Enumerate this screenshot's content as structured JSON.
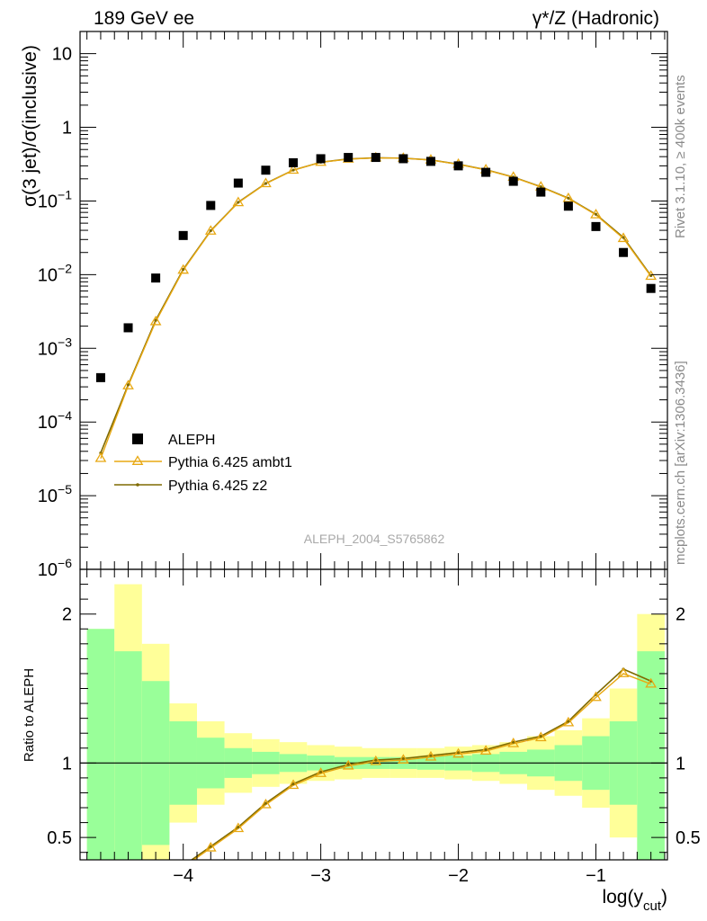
{
  "header": {
    "left": "189 GeV ee",
    "right": "γ*/Z (Hadronic)"
  },
  "side_text": {
    "rivet": "Rivet 3.1.10, ≥ 400k events",
    "mcplots": "mcplots.cern.ch [arXiv:1306.3436]"
  },
  "watermark": "ALEPH_2004_S5765862",
  "colors": {
    "aleph": "#000000",
    "ambt1": "#e8a812",
    "z2": "#7f6a00",
    "band_inner": "#99ff99",
    "band_outer": "#ffff99"
  },
  "chart_data": [
    {
      "type": "scatter",
      "panel": "main",
      "ylabel": "σ(3 jet)/σ(inclusive)",
      "yscale": "log",
      "ylim": [
        1e-06,
        20
      ],
      "xlim": [
        -4.75,
        -0.48
      ],
      "y_ticks": [
        {
          "v": 10,
          "label": "10"
        },
        {
          "v": 1,
          "label": "1"
        },
        {
          "v": 0.1,
          "label": "10",
          "exp": "−1"
        },
        {
          "v": 0.01,
          "label": "10",
          "exp": "−2"
        },
        {
          "v": 0.001,
          "label": "10",
          "exp": "−3"
        },
        {
          "v": 0.0001,
          "label": "10",
          "exp": "−4"
        },
        {
          "v": 1e-05,
          "label": "10",
          "exp": "−5"
        },
        {
          "v": 1e-06,
          "label": "10",
          "exp": "−6"
        }
      ],
      "legend_position": "bottom-left",
      "series": [
        {
          "name": "ALEPH",
          "style": "square",
          "x": [
            -4.6,
            -4.4,
            -4.2,
            -4.0,
            -3.8,
            -3.6,
            -3.4,
            -3.2,
            -3.0,
            -2.8,
            -2.6,
            -2.4,
            -2.2,
            -2.0,
            -1.8,
            -1.6,
            -1.4,
            -1.2,
            -1.0,
            -0.8,
            -0.6
          ],
          "y": [
            0.0004,
            0.0019,
            0.009,
            0.034,
            0.087,
            0.175,
            0.262,
            0.33,
            0.375,
            0.39,
            0.39,
            0.375,
            0.345,
            0.3,
            0.245,
            0.185,
            0.132,
            0.085,
            0.045,
            0.02,
            0.0065
          ]
        },
        {
          "name": "Pythia 6.425 ambt1",
          "style": "triangle",
          "x": [
            -4.6,
            -4.4,
            -4.2,
            -4.0,
            -3.8,
            -3.6,
            -3.4,
            -3.2,
            -3.0,
            -2.8,
            -2.6,
            -2.4,
            -2.2,
            -2.0,
            -1.8,
            -1.6,
            -1.4,
            -1.2,
            -1.0,
            -0.8,
            -0.6
          ],
          "y": [
            3.2e-05,
            0.00031,
            0.0023,
            0.0115,
            0.039,
            0.095,
            0.172,
            0.262,
            0.335,
            0.37,
            0.385,
            0.38,
            0.36,
            0.315,
            0.265,
            0.21,
            0.155,
            0.108,
            0.065,
            0.031,
            0.0095
          ]
        },
        {
          "name": "Pythia 6.425 z2",
          "style": "line",
          "x": [
            -4.6,
            -4.4,
            -4.2,
            -4.0,
            -3.8,
            -3.6,
            -3.4,
            -3.2,
            -3.0,
            -2.8,
            -2.6,
            -2.4,
            -2.2,
            -2.0,
            -1.8,
            -1.6,
            -1.4,
            -1.2,
            -1.0,
            -0.8,
            -0.6
          ],
          "y": [
            3.8e-05,
            0.00032,
            0.0024,
            0.0118,
            0.0395,
            0.096,
            0.173,
            0.263,
            0.336,
            0.372,
            0.386,
            0.381,
            0.361,
            0.316,
            0.266,
            0.211,
            0.156,
            0.109,
            0.066,
            0.032,
            0.0097
          ]
        }
      ]
    },
    {
      "type": "line",
      "panel": "ratio",
      "ylabel": "Ratio to ALEPH",
      "xlabel": "log(y",
      "xlabel_sub": "cut",
      "xlabel_close": ")",
      "ylim": [
        0.35,
        2.3
      ],
      "xlim": [
        -4.75,
        -0.48
      ],
      "y_ticks": [
        {
          "v": 0.5,
          "label": "0.5"
        },
        {
          "v": 1,
          "label": "1"
        },
        {
          "v": 2,
          "label": "2"
        }
      ],
      "x_ticks": [
        {
          "v": -4,
          "label": "−4"
        },
        {
          "v": -3,
          "label": "−3"
        },
        {
          "v": -2,
          "label": "−2"
        },
        {
          "v": -1,
          "label": "−1"
        }
      ],
      "bands": {
        "edges": [
          -4.7,
          -4.5,
          -4.3,
          -4.1,
          -3.9,
          -3.7,
          -3.5,
          -3.3,
          -3.1,
          -2.9,
          -2.7,
          -2.5,
          -2.3,
          -2.1,
          -1.9,
          -1.7,
          -1.5,
          -1.3,
          -1.1,
          -0.9,
          -0.7,
          -0.5
        ],
        "inner": [
          0.9,
          0.75,
          0.55,
          0.28,
          0.17,
          0.1,
          0.075,
          0.06,
          0.05,
          0.04,
          0.04,
          0.04,
          0.045,
          0.05,
          0.06,
          0.075,
          0.09,
          0.12,
          0.18,
          0.28,
          0.75
        ],
        "outer": [
          0.9,
          1.2,
          0.8,
          0.4,
          0.28,
          0.2,
          0.16,
          0.14,
          0.12,
          0.11,
          0.1,
          0.1,
          0.1,
          0.11,
          0.12,
          0.14,
          0.18,
          0.22,
          0.3,
          0.5,
          1.0
        ]
      },
      "series": [
        {
          "name": "Pythia 6.425 ambt1",
          "style": "triangle",
          "x": [
            -3.8,
            -3.6,
            -3.4,
            -3.2,
            -3.0,
            -2.8,
            -2.6,
            -2.4,
            -2.2,
            -2.0,
            -1.8,
            -1.6,
            -1.4,
            -1.2,
            -1.0,
            -0.8,
            -0.6
          ],
          "y": [
            0.43,
            0.56,
            0.72,
            0.85,
            0.93,
            0.98,
            1.01,
            1.02,
            1.04,
            1.06,
            1.08,
            1.13,
            1.17,
            1.27,
            1.44,
            1.6,
            1.53
          ]
        },
        {
          "name": "Pythia 6.425 z2",
          "style": "line",
          "x": [
            -3.8,
            -3.6,
            -3.4,
            -3.2,
            -3.0,
            -2.8,
            -2.6,
            -2.4,
            -2.2,
            -2.0,
            -1.8,
            -1.6,
            -1.4,
            -1.2,
            -1.0,
            -0.8,
            -0.6
          ],
          "y": [
            0.44,
            0.57,
            0.73,
            0.86,
            0.94,
            0.99,
            1.02,
            1.03,
            1.05,
            1.07,
            1.09,
            1.14,
            1.18,
            1.28,
            1.46,
            1.63,
            1.55
          ]
        }
      ]
    }
  ]
}
